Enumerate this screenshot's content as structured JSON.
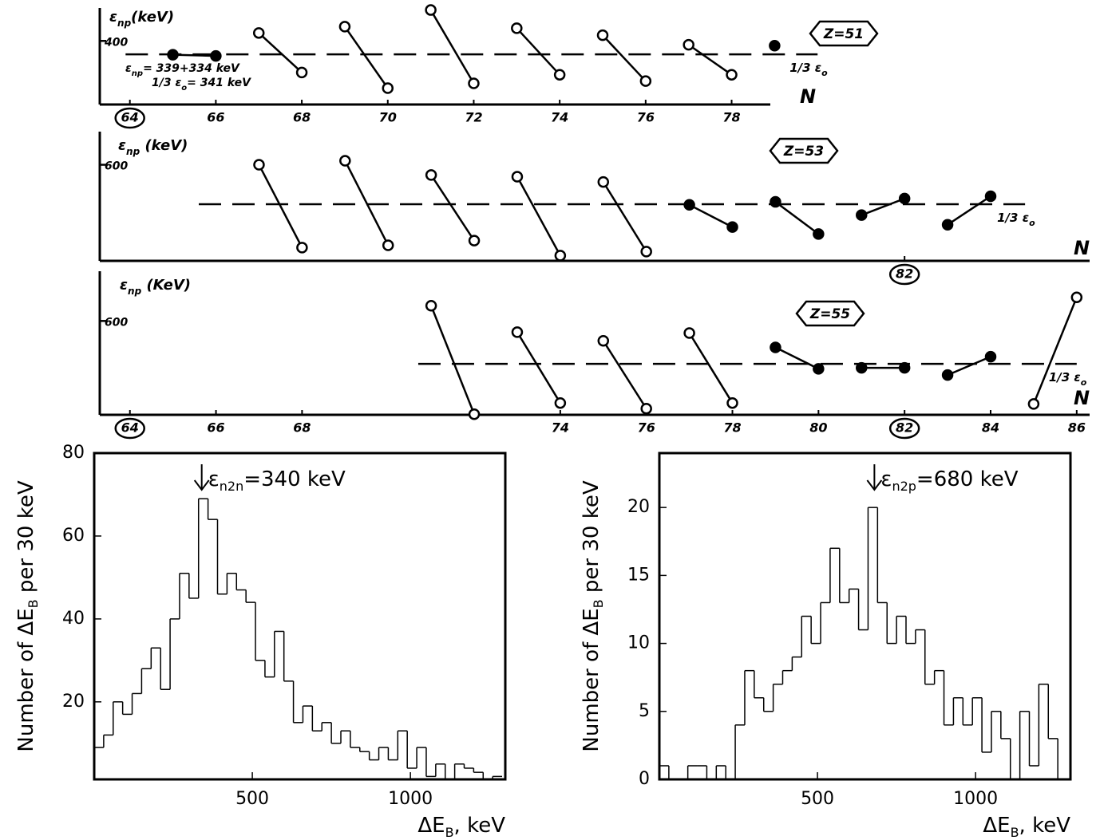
{
  "chart_data": [
    {
      "type": "segments",
      "ylabel": [
        "ε",
        "np",
        "(keV)"
      ],
      "tag": "Z=51",
      "xlabel": "N",
      "xlim": [
        63.3,
        78.9
      ],
      "ylim": [
        120,
        545
      ],
      "yticks": [
        400
      ],
      "xticks": [
        64,
        66,
        68,
        70,
        72,
        74,
        76,
        78
      ],
      "circled_xticks": [
        64
      ],
      "series": [
        {
          "x": [
            65,
            66
          ],
          "values": [
            339,
            334
          ],
          "filled": true
        },
        {
          "x": [
            67,
            68
          ],
          "values": [
            435,
            261
          ],
          "filled": false
        },
        {
          "x": [
            69,
            70
          ],
          "values": [
            463,
            192
          ],
          "filled": false
        },
        {
          "x": [
            71,
            72
          ],
          "values": [
            536,
            213
          ],
          "filled": false
        },
        {
          "x": [
            73,
            74
          ],
          "values": [
            456,
            251
          ],
          "filled": false
        },
        {
          "x": [
            75,
            76
          ],
          "values": [
            425,
            223
          ],
          "filled": false
        },
        {
          "x": [
            77,
            78
          ],
          "values": [
            383,
            251
          ],
          "filled": false
        },
        {
          "x": [
            79
          ],
          "values": [
            379
          ],
          "filled": true
        }
      ],
      "ref_line": {
        "value": 341,
        "x": [
          63.9,
          80
        ],
        "label": [
          "1/3 ε",
          "o"
        ]
      },
      "annotations": [
        [
          "ε",
          "np",
          "= 339+334 keV"
        ],
        [
          "1/3 ε",
          "o",
          "= 341 keV"
        ]
      ]
    },
    {
      "type": "segments",
      "ylabel": [
        "ε",
        "np",
        " (keV)"
      ],
      "tag": "Z=53",
      "xlabel": "N",
      "xlim": [
        63.3,
        86.3
      ],
      "ylim": [
        310,
        700
      ],
      "yticks": [
        600
      ],
      "xticks": [
        82
      ],
      "circled_xticks": [
        82
      ],
      "series": [
        {
          "x": [
            67,
            68
          ],
          "values": [
            600,
            350
          ],
          "filled": false
        },
        {
          "x": [
            69,
            70
          ],
          "values": [
            612,
            357
          ],
          "filled": false
        },
        {
          "x": [
            71,
            72
          ],
          "values": [
            569,
            371
          ],
          "filled": false
        },
        {
          "x": [
            73,
            74
          ],
          "values": [
            564,
            326
          ],
          "filled": false
        },
        {
          "x": [
            75,
            76
          ],
          "values": [
            548,
            338
          ],
          "filled": false
        },
        {
          "x": [
            77,
            78
          ],
          "values": [
            479,
            412
          ],
          "filled": true
        },
        {
          "x": [
            79,
            80
          ],
          "values": [
            488,
            391
          ],
          "filled": true
        },
        {
          "x": [
            81,
            82
          ],
          "values": [
            448,
            498
          ],
          "filled": true
        },
        {
          "x": [
            83,
            84
          ],
          "values": [
            419,
            505
          ],
          "filled": true
        }
      ],
      "ref_line": {
        "value": 481,
        "x": [
          65.6,
          84.8
        ],
        "label": [
          "1/3 ε",
          "o"
        ]
      }
    },
    {
      "type": "segments",
      "ylabel": [
        "ε",
        "np",
        " (KeV)"
      ],
      "tag": "Z=55",
      "xlabel": "N",
      "xlim": [
        63.3,
        86.3
      ],
      "ylim": [
        298,
        760
      ],
      "yticks": [
        600
      ],
      "xticks": [
        64,
        66,
        68,
        74,
        76,
        78,
        80,
        82,
        84,
        86
      ],
      "circled_xticks": [
        64,
        82
      ],
      "series": [
        {
          "x": [
            71,
            72
          ],
          "values": [
            649,
            300
          ],
          "filled": false
        },
        {
          "x": [
            73,
            74
          ],
          "values": [
            564,
            336
          ],
          "filled": false
        },
        {
          "x": [
            75,
            76
          ],
          "values": [
            536,
            318
          ],
          "filled": false
        },
        {
          "x": [
            77,
            78
          ],
          "values": [
            561,
            336
          ],
          "filled": false
        },
        {
          "x": [
            79,
            80
          ],
          "values": [
            515,
            446
          ],
          "filled": true
        },
        {
          "x": [
            81,
            82
          ],
          "values": [
            449,
            449
          ],
          "filled": true
        },
        {
          "x": [
            83,
            84
          ],
          "values": [
            426,
            485
          ],
          "filled": true
        },
        {
          "x": [
            85,
            86
          ],
          "values": [
            333,
            676
          ],
          "filled": false
        }
      ],
      "ref_line": {
        "value": 462,
        "x": [
          70.7,
          86
        ],
        "label": [
          "1/3 ε",
          "o"
        ]
      }
    },
    {
      "type": "histogram",
      "bins": [
        0,
        30,
        60,
        90,
        120,
        150,
        180,
        210,
        240,
        270,
        300,
        330,
        360,
        390,
        420,
        450,
        480,
        510,
        540,
        570,
        600,
        630,
        660,
        690,
        720,
        750,
        780,
        810,
        840,
        870,
        900,
        930,
        960,
        990,
        1020,
        1050,
        1080,
        1110,
        1140,
        1170,
        1200,
        1230,
        1260,
        1290
      ],
      "values": [
        9,
        12,
        20,
        17,
        22,
        28,
        33,
        23,
        40,
        51,
        45,
        69,
        64,
        46,
        51,
        47,
        44,
        30,
        26,
        37,
        25,
        15,
        19,
        13,
        15,
        10,
        13,
        9,
        8,
        6,
        9,
        6,
        13,
        4,
        9,
        2,
        5,
        1,
        5,
        4,
        3,
        1,
        2
      ],
      "xlim": [
        0,
        1300
      ],
      "ylim": [
        1.3,
        80
      ],
      "xticks": [
        500,
        1000
      ],
      "yticks": [
        20,
        40,
        60,
        80
      ],
      "xlabel": [
        "ΔE",
        "B",
        ", keV"
      ],
      "ylabel": [
        "Number of ΔE",
        "B",
        " per 30 keV"
      ],
      "annotation": {
        "x": 340,
        "text": [
          "ε",
          "n2n",
          "=340 keV"
        ]
      }
    },
    {
      "type": "histogram",
      "bins": [
        0,
        30,
        60,
        90,
        120,
        150,
        180,
        210,
        240,
        270,
        300,
        330,
        360,
        390,
        420,
        450,
        480,
        510,
        540,
        570,
        600,
        630,
        660,
        690,
        720,
        750,
        780,
        810,
        840,
        870,
        900,
        930,
        960,
        990,
        1020,
        1050,
        1080,
        1110,
        1140,
        1170,
        1200,
        1230,
        1260,
        1290
      ],
      "values": [
        1,
        0,
        0,
        1,
        1,
        0,
        1,
        0,
        4,
        8,
        6,
        5,
        7,
        8,
        9,
        12,
        10,
        13,
        17,
        13,
        14,
        11,
        20,
        13,
        10,
        12,
        10,
        11,
        7,
        8,
        4,
        6,
        4,
        6,
        2,
        5,
        3,
        0,
        5,
        1,
        7,
        3,
        0
      ],
      "xlim": [
        0,
        1300
      ],
      "ylim": [
        0,
        24
      ],
      "xticks": [
        500,
        1000
      ],
      "yticks": [
        0,
        5,
        10,
        15,
        20
      ],
      "xlabel": [
        "ΔE",
        "B",
        ", keV"
      ],
      "ylabel": [
        "Number of ΔE",
        "B",
        " per 30 keV"
      ],
      "annotation": {
        "x": 680,
        "text": [
          "ε",
          "n2p",
          "=680 keV"
        ]
      }
    }
  ]
}
